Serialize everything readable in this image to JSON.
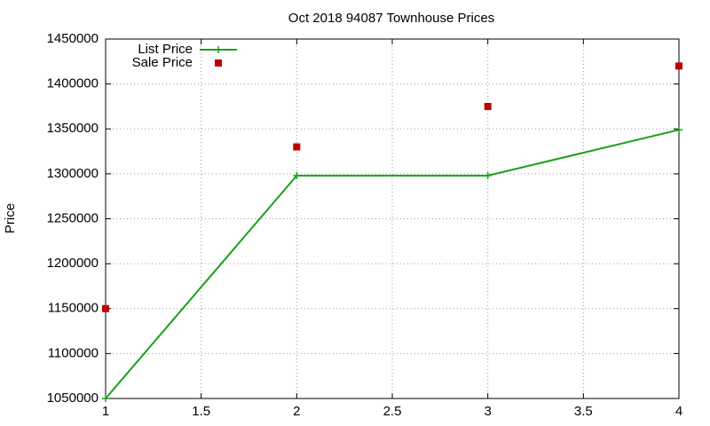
{
  "chart_data": {
    "type": "line",
    "title": "Oct 2018 94087 Townhouse Prices",
    "y_label": "Price",
    "x": [
      1,
      2,
      3,
      4
    ],
    "series": [
      {
        "name": "List Price",
        "color": "#1aa01a",
        "mode": "lines+points",
        "marker": "plus",
        "values": [
          1050000,
          1298000,
          1298000,
          1349000
        ]
      },
      {
        "name": "Sale Price",
        "color": "#c00000",
        "mode": "points",
        "marker": "square",
        "values": [
          1150000,
          1330000,
          1375000,
          1420000
        ]
      }
    ],
    "xlim": [
      1,
      4
    ],
    "xticks": [
      1,
      1.5,
      2,
      2.5,
      3,
      3.5,
      4
    ],
    "ylim": [
      1050000,
      1450000
    ],
    "yticks": [
      1050000,
      1100000,
      1150000,
      1200000,
      1250000,
      1300000,
      1350000,
      1400000,
      1450000
    ],
    "grid": true,
    "legend": "top-left"
  }
}
